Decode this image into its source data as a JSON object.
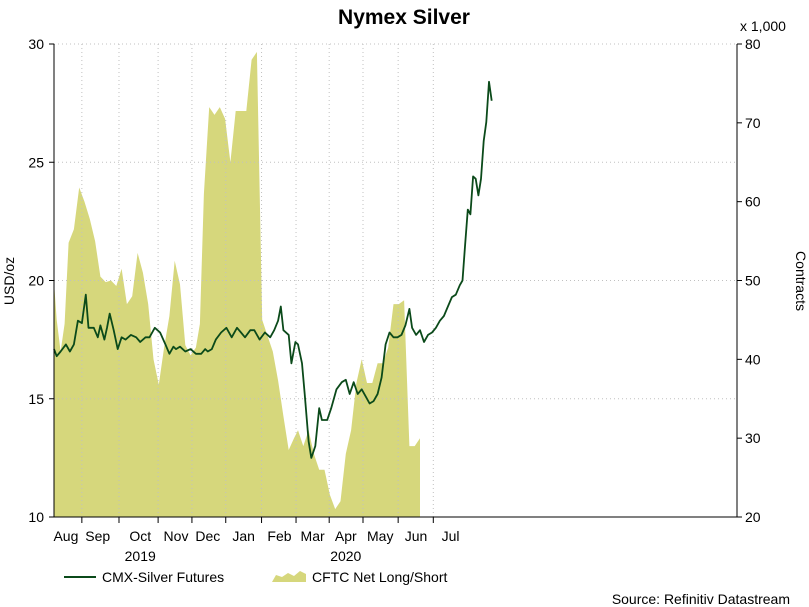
{
  "chart_data": {
    "type": "line",
    "title": "Nymex Silver",
    "left_axis": {
      "label": "USD/oz",
      "range": [
        10,
        30
      ],
      "ticks": [
        "10",
        "15",
        "20",
        "25",
        "30"
      ]
    },
    "right_axis": {
      "label": "Contracts",
      "multiplier": "x 1,000",
      "range": [
        20,
        80
      ],
      "ticks": [
        "20",
        "30",
        "40",
        "50",
        "60",
        "70",
        "80"
      ]
    },
    "x_axis": {
      "range": [
        0,
        51.5
      ],
      "months": [
        {
          "label": "Aug",
          "pos": 0.9
        },
        {
          "label": "Sep",
          "pos": 3.3
        },
        {
          "label": "Oct",
          "pos": 6.5
        },
        {
          "label": "Nov",
          "pos": 9.2
        },
        {
          "label": "Dec",
          "pos": 11.6
        },
        {
          "label": "Jan",
          "pos": 14.3
        },
        {
          "label": "Feb",
          "pos": 17.0
        },
        {
          "label": "Mar",
          "pos": 19.5
        },
        {
          "label": "Apr",
          "pos": 22.0
        },
        {
          "label": "May",
          "pos": 24.6
        },
        {
          "label": "Jun",
          "pos": 27.3
        },
        {
          "label": "Jul",
          "pos": 29.9
        }
      ],
      "years": [
        {
          "label": "2019",
          "pos": 6.5
        },
        {
          "label": "2020",
          "pos": 22.0
        }
      ]
    },
    "grid": true,
    "legend_position": "bottom-left",
    "series": [
      {
        "name": "CMX-Silver Futures",
        "axis": "left",
        "style": "line",
        "color": "#0b4a1a",
        "points": [
          [
            0,
            17.1
          ],
          [
            0.2,
            16.8
          ],
          [
            0.5,
            17.0
          ],
          [
            0.9,
            17.3
          ],
          [
            1.2,
            17.0
          ],
          [
            1.5,
            17.3
          ],
          [
            1.8,
            18.3
          ],
          [
            2.1,
            18.2
          ],
          [
            2.4,
            19.4
          ],
          [
            2.6,
            18.0
          ],
          [
            3.0,
            18.0
          ],
          [
            3.3,
            17.6
          ],
          [
            3.5,
            18.1
          ],
          [
            3.8,
            17.5
          ],
          [
            4.0,
            18.0
          ],
          [
            4.2,
            18.6
          ],
          [
            4.5,
            17.9
          ],
          [
            4.8,
            17.1
          ],
          [
            5.1,
            17.6
          ],
          [
            5.4,
            17.5
          ],
          [
            5.8,
            17.7
          ],
          [
            6.2,
            17.6
          ],
          [
            6.5,
            17.4
          ],
          [
            6.9,
            17.6
          ],
          [
            7.2,
            17.6
          ],
          [
            7.6,
            18.0
          ],
          [
            8.0,
            17.8
          ],
          [
            8.4,
            17.3
          ],
          [
            8.7,
            16.9
          ],
          [
            9.0,
            17.2
          ],
          [
            9.2,
            17.1
          ],
          [
            9.5,
            17.2
          ],
          [
            9.9,
            17.0
          ],
          [
            10.3,
            17.1
          ],
          [
            10.7,
            16.9
          ],
          [
            11.1,
            16.9
          ],
          [
            11.4,
            17.1
          ],
          [
            11.6,
            17.0
          ],
          [
            11.9,
            17.1
          ],
          [
            12.2,
            17.5
          ],
          [
            12.6,
            17.8
          ],
          [
            13.0,
            18.0
          ],
          [
            13.4,
            17.6
          ],
          [
            13.8,
            18.0
          ],
          [
            14.1,
            17.8
          ],
          [
            14.4,
            17.6
          ],
          [
            14.8,
            17.9
          ],
          [
            15.1,
            17.9
          ],
          [
            15.5,
            17.5
          ],
          [
            15.9,
            17.8
          ],
          [
            16.3,
            17.6
          ],
          [
            16.6,
            17.9
          ],
          [
            16.9,
            18.3
          ],
          [
            17.1,
            18.9
          ],
          [
            17.3,
            17.9
          ],
          [
            17.7,
            17.7
          ],
          [
            17.9,
            16.5
          ],
          [
            18.2,
            17.4
          ],
          [
            18.4,
            17.3
          ],
          [
            18.7,
            16.5
          ],
          [
            18.9,
            15.2
          ],
          [
            19.2,
            13.2
          ],
          [
            19.4,
            12.5
          ],
          [
            19.7,
            13.0
          ],
          [
            20.0,
            14.6
          ],
          [
            20.2,
            14.1
          ],
          [
            20.6,
            14.1
          ],
          [
            20.9,
            14.6
          ],
          [
            21.3,
            15.4
          ],
          [
            21.7,
            15.7
          ],
          [
            22.0,
            15.8
          ],
          [
            22.3,
            15.2
          ],
          [
            22.6,
            15.7
          ],
          [
            22.9,
            15.2
          ],
          [
            23.2,
            15.4
          ],
          [
            23.5,
            15.1
          ],
          [
            23.8,
            14.8
          ],
          [
            24.1,
            14.9
          ],
          [
            24.4,
            15.2
          ],
          [
            24.7,
            15.9
          ],
          [
            25.0,
            17.3
          ],
          [
            25.3,
            17.8
          ],
          [
            25.6,
            17.6
          ],
          [
            25.9,
            17.6
          ],
          [
            26.2,
            17.7
          ],
          [
            26.5,
            18.1
          ],
          [
            26.8,
            18.8
          ],
          [
            27.0,
            18.0
          ],
          [
            27.3,
            17.7
          ],
          [
            27.6,
            17.9
          ],
          [
            27.9,
            17.4
          ],
          [
            28.2,
            17.7
          ],
          [
            28.5,
            17.8
          ],
          [
            28.8,
            18.0
          ],
          [
            29.1,
            18.3
          ],
          [
            29.4,
            18.5
          ],
          [
            29.7,
            18.9
          ],
          [
            30.0,
            19.3
          ],
          [
            30.3,
            19.4
          ],
          [
            30.6,
            19.8
          ],
          [
            30.8,
            20.0
          ],
          [
            31.0,
            21.5
          ],
          [
            31.2,
            23.0
          ],
          [
            31.4,
            22.8
          ],
          [
            31.6,
            24.4
          ],
          [
            31.8,
            24.3
          ],
          [
            32.0,
            23.6
          ],
          [
            32.2,
            24.3
          ],
          [
            32.4,
            25.9
          ],
          [
            32.6,
            26.7
          ],
          [
            32.8,
            28.4
          ],
          [
            33.0,
            27.6
          ]
        ]
      },
      {
        "name": "CFTC Net Long/Short",
        "axis": "right",
        "style": "area-step",
        "color": "#d6d77c",
        "points": [
          [
            -0.2,
            49.8
          ],
          [
            0.2,
            45.0
          ],
          [
            0.5,
            41.0
          ],
          [
            0.8,
            44.5
          ],
          [
            1.1,
            54.8
          ],
          [
            1.5,
            56.5
          ],
          [
            1.9,
            61.8
          ],
          [
            2.3,
            60.0
          ],
          [
            2.7,
            57.8
          ],
          [
            3.1,
            55.0
          ],
          [
            3.5,
            50.5
          ],
          [
            3.9,
            49.8
          ],
          [
            4.3,
            50.0
          ],
          [
            4.7,
            49.3
          ],
          [
            5.1,
            51.5
          ],
          [
            5.5,
            47.0
          ],
          [
            5.9,
            48.0
          ],
          [
            6.3,
            53.5
          ],
          [
            6.7,
            51.0
          ],
          [
            7.1,
            47.0
          ],
          [
            7.5,
            40.0
          ],
          [
            7.9,
            36.8
          ],
          [
            8.3,
            41.5
          ],
          [
            8.7,
            45.5
          ],
          [
            9.1,
            52.5
          ],
          [
            9.5,
            49.5
          ],
          [
            9.9,
            41.8
          ],
          [
            10.3,
            40.5
          ],
          [
            10.7,
            41.5
          ],
          [
            11.0,
            44.5
          ],
          [
            11.3,
            61.0
          ],
          [
            11.7,
            72.0
          ],
          [
            12.1,
            71.0
          ],
          [
            12.5,
            72.0
          ],
          [
            12.9,
            70.5
          ],
          [
            13.3,
            65.0
          ],
          [
            13.7,
            71.5
          ],
          [
            14.1,
            71.5
          ],
          [
            14.5,
            71.5
          ],
          [
            14.9,
            78.0
          ],
          [
            15.3,
            79.0
          ],
          [
            15.7,
            45.0
          ],
          [
            16.1,
            43.0
          ],
          [
            16.5,
            41.0
          ],
          [
            16.9,
            37.3
          ],
          [
            17.3,
            32.8
          ],
          [
            17.7,
            28.5
          ],
          [
            18.1,
            30.0
          ],
          [
            18.4,
            31.0
          ],
          [
            18.8,
            29.0
          ],
          [
            19.2,
            31.0
          ],
          [
            19.6,
            28.0
          ],
          [
            20.0,
            26.0
          ],
          [
            20.4,
            26.0
          ],
          [
            20.8,
            22.8
          ],
          [
            21.2,
            21.0
          ],
          [
            21.6,
            22.0
          ],
          [
            22.0,
            28.0
          ],
          [
            22.4,
            31.0
          ],
          [
            22.8,
            37.0
          ],
          [
            23.2,
            40.0
          ],
          [
            23.6,
            37.0
          ],
          [
            24.0,
            37.0
          ],
          [
            24.4,
            39.5
          ],
          [
            24.8,
            39.5
          ],
          [
            25.2,
            41.5
          ],
          [
            25.6,
            47.0
          ],
          [
            26.0,
            47.0
          ],
          [
            26.4,
            47.5
          ],
          [
            26.8,
            29.0
          ],
          [
            27.2,
            29.0
          ],
          [
            27.6,
            30.0
          ]
        ]
      }
    ]
  },
  "source": "Source: Refinitiv Datastream"
}
